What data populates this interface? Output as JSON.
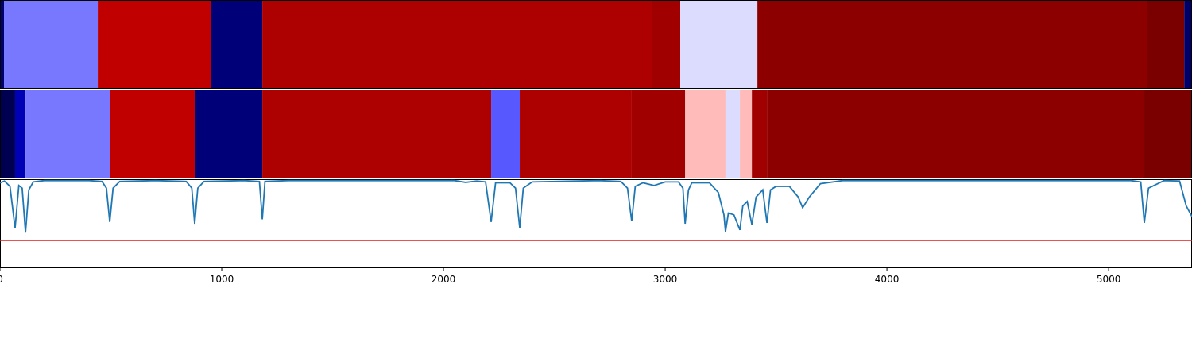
{
  "chart_data": {
    "type": "strips_and_line",
    "xlim": [
      0,
      5376
    ],
    "xticks": [
      0,
      1000,
      2000,
      3000,
      4000,
      5000
    ],
    "strips": [
      {
        "segments": [
          {
            "start": 0,
            "end": 18,
            "color": "#000070"
          },
          {
            "start": 18,
            "end": 441,
            "color": "#7878ff"
          },
          {
            "start": 441,
            "end": 953,
            "color": "#c00000"
          },
          {
            "start": 953,
            "end": 1183,
            "color": "#000078"
          },
          {
            "start": 1183,
            "end": 2939,
            "color": "#ad0000"
          },
          {
            "start": 2939,
            "end": 3068,
            "color": "#a00000"
          },
          {
            "start": 3068,
            "end": 3416,
            "color": "#dcdcff"
          },
          {
            "start": 3416,
            "end": 5172,
            "color": "#8c0000"
          },
          {
            "start": 5172,
            "end": 5341,
            "color": "#7a0000"
          },
          {
            "start": 5341,
            "end": 5376,
            "color": "#00006a"
          }
        ]
      },
      {
        "segments": [
          {
            "start": 0,
            "end": 68,
            "color": "#000050"
          },
          {
            "start": 68,
            "end": 115,
            "color": "#0000b4"
          },
          {
            "start": 115,
            "end": 495,
            "color": "#7878ff"
          },
          {
            "start": 495,
            "end": 878,
            "color": "#c00000"
          },
          {
            "start": 878,
            "end": 1183,
            "color": "#000078"
          },
          {
            "start": 1183,
            "end": 2215,
            "color": "#ad0000"
          },
          {
            "start": 2215,
            "end": 2344,
            "color": "#5858ff"
          },
          {
            "start": 2344,
            "end": 2849,
            "color": "#ad0000"
          },
          {
            "start": 2849,
            "end": 3090,
            "color": "#a00000"
          },
          {
            "start": 3090,
            "end": 3272,
            "color": "#ffbaba"
          },
          {
            "start": 3272,
            "end": 3337,
            "color": "#dcdcff"
          },
          {
            "start": 3337,
            "end": 3391,
            "color": "#ffbaba"
          },
          {
            "start": 3391,
            "end": 3459,
            "color": "#a00000"
          },
          {
            "start": 3459,
            "end": 5161,
            "color": "#8c0000"
          },
          {
            "start": 5161,
            "end": 5376,
            "color": "#7a0000"
          }
        ]
      }
    ],
    "line": {
      "color": "#1f77b4",
      "ylim": [
        0,
        1
      ],
      "x": [
        0,
        20,
        45,
        68,
        85,
        100,
        115,
        130,
        150,
        200,
        400,
        460,
        480,
        495,
        510,
        540,
        700,
        840,
        865,
        878,
        892,
        920,
        1100,
        1170,
        1183,
        1195,
        1300,
        2050,
        2100,
        2150,
        2190,
        2215,
        2235,
        2300,
        2325,
        2344,
        2360,
        2400,
        2700,
        2800,
        2830,
        2849,
        2865,
        2900,
        2950,
        3000,
        3060,
        3080,
        3090,
        3105,
        3120,
        3200,
        3240,
        3265,
        3272,
        3285,
        3310,
        3337,
        3350,
        3370,
        3391,
        3410,
        3440,
        3459,
        3475,
        3500,
        3560,
        3600,
        3620,
        3650,
        3700,
        3800,
        5100,
        5145,
        5161,
        5180,
        5250,
        5320,
        5350,
        5376
      ],
      "values": [
        0.96,
        0.98,
        0.92,
        0.45,
        0.93,
        0.9,
        0.4,
        0.88,
        0.97,
        0.985,
        0.985,
        0.975,
        0.9,
        0.52,
        0.9,
        0.975,
        0.985,
        0.975,
        0.9,
        0.5,
        0.9,
        0.975,
        0.985,
        0.975,
        0.55,
        0.975,
        0.985,
        0.985,
        0.965,
        0.98,
        0.97,
        0.52,
        0.96,
        0.96,
        0.9,
        0.455,
        0.9,
        0.97,
        0.985,
        0.975,
        0.9,
        0.53,
        0.92,
        0.96,
        0.93,
        0.97,
        0.97,
        0.9,
        0.5,
        0.88,
        0.96,
        0.96,
        0.85,
        0.6,
        0.41,
        0.62,
        0.6,
        0.43,
        0.7,
        0.75,
        0.49,
        0.8,
        0.88,
        0.51,
        0.88,
        0.92,
        0.92,
        0.8,
        0.68,
        0.8,
        0.95,
        0.985,
        0.985,
        0.97,
        0.51,
        0.9,
        0.985,
        0.98,
        0.7,
        0.58
      ],
      "threshold": 0.3125,
      "threshold_color": "#e41a1c"
    }
  }
}
